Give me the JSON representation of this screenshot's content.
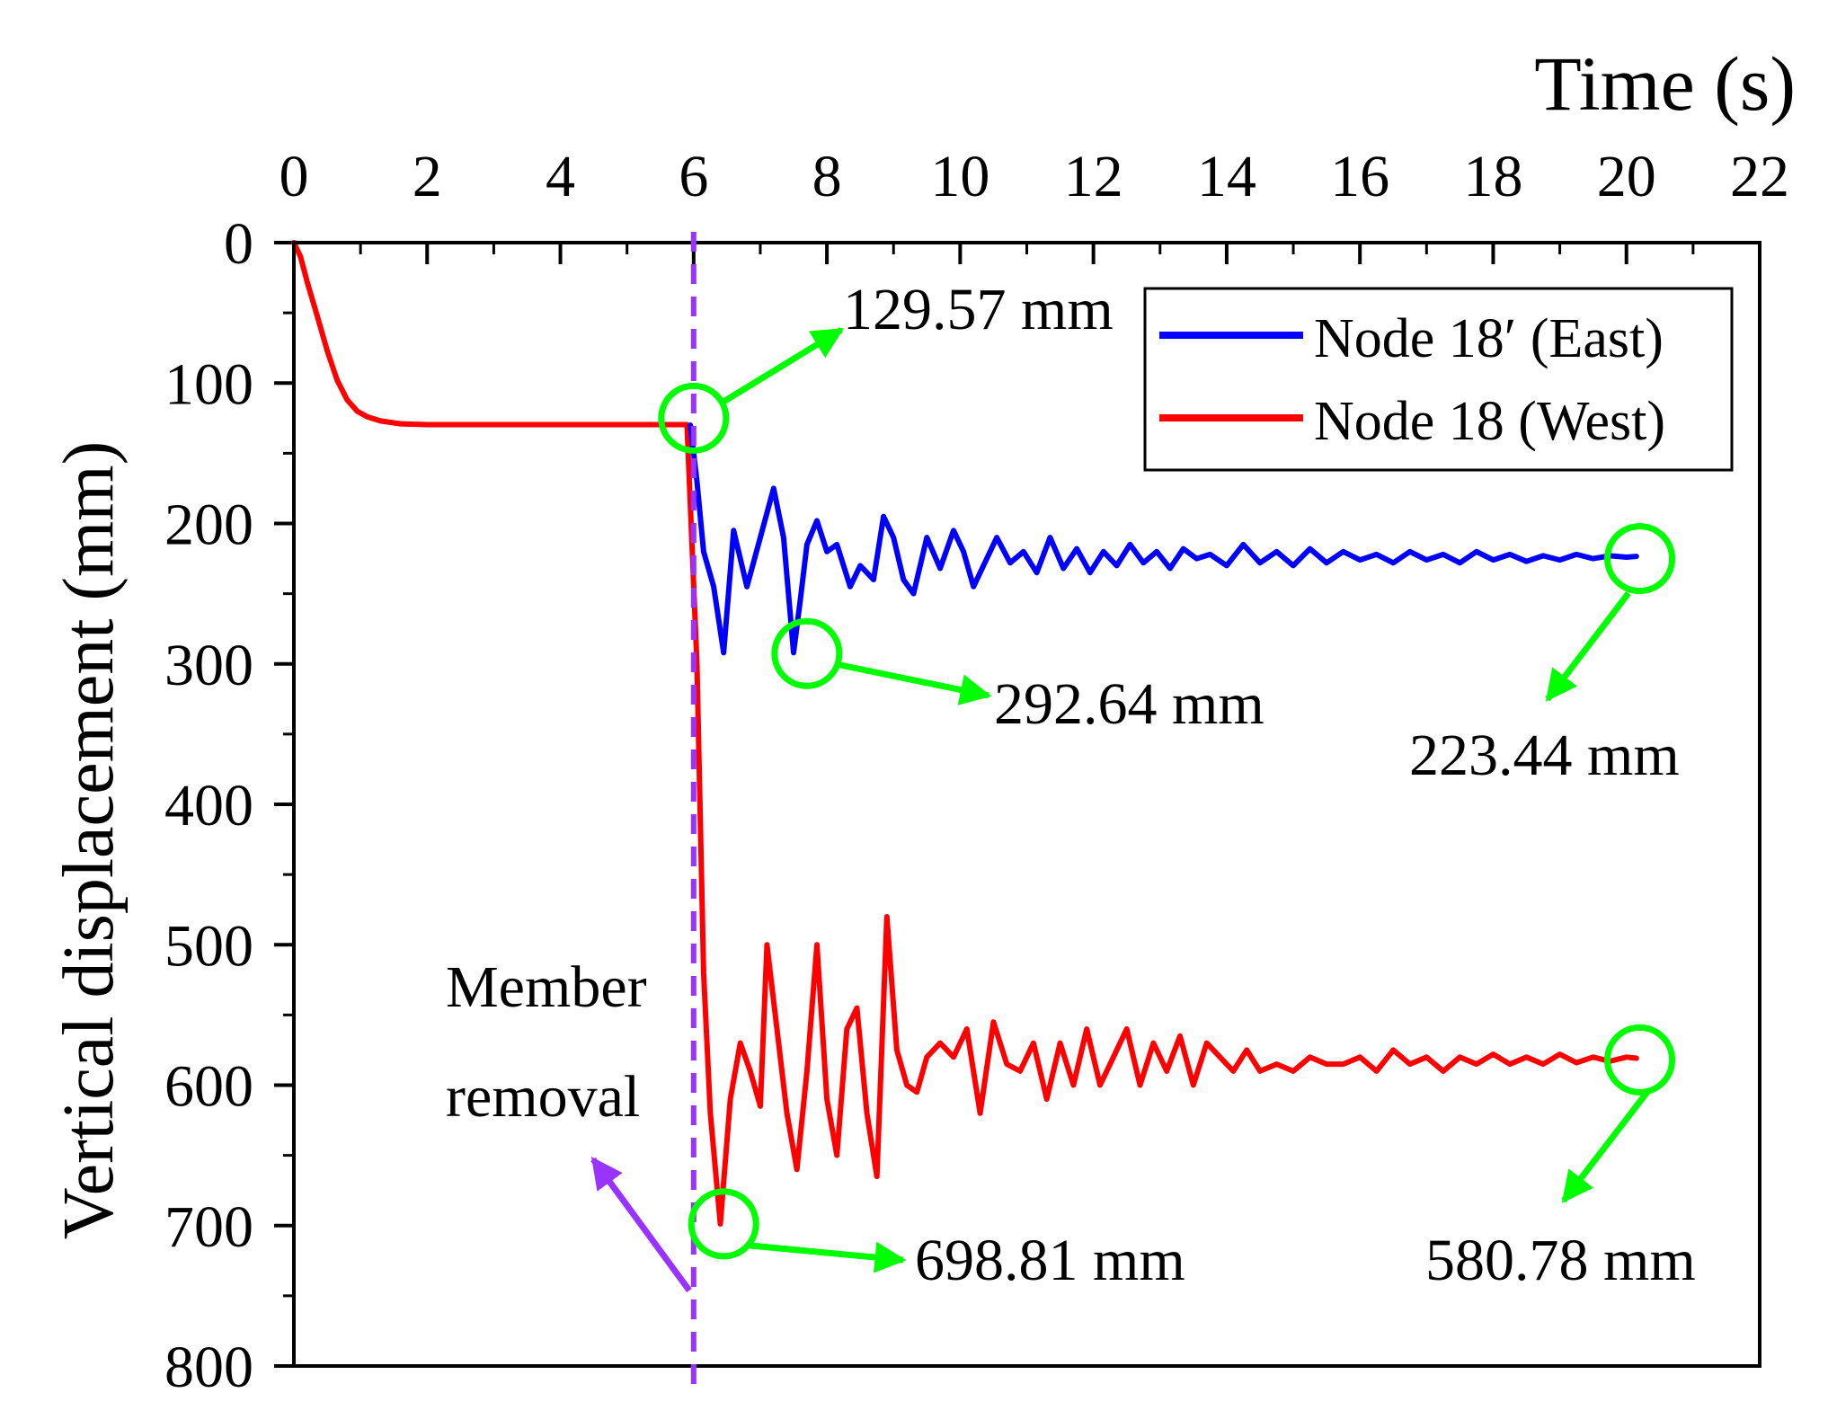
{
  "chart_data": {
    "type": "line",
    "xlabel": "Time (s)",
    "ylabel": "Vertical displacement (mm)",
    "xlim": [
      0,
      22
    ],
    "ylim": [
      0,
      800
    ],
    "y_inverted": true,
    "x_axis_position": "top",
    "xticks": [
      0,
      2,
      4,
      6,
      8,
      10,
      12,
      14,
      16,
      18,
      20,
      22
    ],
    "yticks": [
      0,
      100,
      200,
      300,
      400,
      500,
      600,
      700,
      800
    ],
    "legend_position": "top-right",
    "series": [
      {
        "name": "Node 18′ (East)",
        "color": "#0000ff",
        "x": [
          5.95,
          6.05,
          6.15,
          6.3,
          6.45,
          6.6,
          6.8,
          7.0,
          7.2,
          7.35,
          7.5,
          7.6,
          7.7,
          7.85,
          8.0,
          8.15,
          8.35,
          8.5,
          8.7,
          8.85,
          9.0,
          9.15,
          9.3,
          9.5,
          9.7,
          9.9,
          10.05,
          10.2,
          10.4,
          10.55,
          10.75,
          10.95,
          11.15,
          11.35,
          11.55,
          11.75,
          11.95,
          12.15,
          12.35,
          12.55,
          12.75,
          12.95,
          13.15,
          13.35,
          13.55,
          13.75,
          14.0,
          14.25,
          14.5,
          14.75,
          15.0,
          15.25,
          15.5,
          15.75,
          16.0,
          16.25,
          16.5,
          16.75,
          17.0,
          17.25,
          17.5,
          17.75,
          18.0,
          18.25,
          18.5,
          18.75,
          19.0,
          19.25,
          19.5,
          19.75,
          20.0,
          20.15
        ],
        "y": [
          130,
          170,
          220,
          245,
          292,
          205,
          245,
          210,
          175,
          210,
          292,
          255,
          215,
          198,
          220,
          215,
          245,
          230,
          240,
          195,
          210,
          240,
          250,
          210,
          232,
          205,
          220,
          245,
          225,
          210,
          228,
          220,
          235,
          210,
          232,
          218,
          235,
          220,
          230,
          215,
          228,
          220,
          232,
          218,
          225,
          222,
          230,
          215,
          228,
          220,
          230,
          218,
          228,
          220,
          226,
          222,
          228,
          220,
          226,
          222,
          228,
          220,
          226,
          222,
          227,
          223,
          226,
          222,
          225,
          223,
          224,
          223.44
        ]
      },
      {
        "name": "Node 18 (West)",
        "color": "#ff0000",
        "x": [
          0,
          0.1,
          0.2,
          0.35,
          0.5,
          0.65,
          0.8,
          0.95,
          1.1,
          1.3,
          1.6,
          2.0,
          3.0,
          4.0,
          5.0,
          5.9,
          6.05,
          6.15,
          6.25,
          6.4,
          6.55,
          6.7,
          6.85,
          7.0,
          7.1,
          7.25,
          7.4,
          7.55,
          7.7,
          7.85,
          8.0,
          8.15,
          8.3,
          8.45,
          8.6,
          8.75,
          8.9,
          9.05,
          9.2,
          9.35,
          9.5,
          9.7,
          9.9,
          10.1,
          10.3,
          10.5,
          10.7,
          10.9,
          11.1,
          11.3,
          11.5,
          11.7,
          11.9,
          12.1,
          12.3,
          12.5,
          12.7,
          12.9,
          13.1,
          13.3,
          13.5,
          13.7,
          13.9,
          14.1,
          14.3,
          14.5,
          14.75,
          15.0,
          15.25,
          15.5,
          15.75,
          16.0,
          16.25,
          16.5,
          16.75,
          17.0,
          17.25,
          17.5,
          17.75,
          18.0,
          18.25,
          18.5,
          18.75,
          19.0,
          19.25,
          19.5,
          19.75,
          20.0,
          20.15
        ],
        "y": [
          0,
          10,
          28,
          52,
          77,
          98,
          112,
          120,
          124,
          127,
          129,
          129.57,
          129.57,
          129.57,
          129.57,
          129.57,
          300,
          520,
          620,
          698.81,
          610,
          570,
          590,
          615,
          500,
          560,
          620,
          660,
          590,
          500,
          610,
          650,
          560,
          545,
          620,
          665,
          480,
          575,
          600,
          605,
          580,
          570,
          580,
          560,
          620,
          555,
          585,
          590,
          570,
          610,
          570,
          600,
          560,
          600,
          580,
          560,
          600,
          570,
          590,
          565,
          600,
          570,
          580,
          590,
          575,
          590,
          585,
          590,
          580,
          585,
          585,
          580,
          590,
          575,
          585,
          580,
          590,
          580,
          585,
          578,
          585,
          580,
          585,
          578,
          584,
          580,
          583,
          580,
          580.78
        ]
      }
    ],
    "vertical_line": {
      "x": 6,
      "color": "#9933ff",
      "style": "dashed"
    },
    "annotations": [
      {
        "text": "129.57 mm",
        "x": 6.0,
        "y": 125
      },
      {
        "text": "292.64 mm",
        "x": 7.7,
        "y": 292.64
      },
      {
        "text": "223.44 mm",
        "x": 20.2,
        "y": 225
      },
      {
        "text": "698.81 mm",
        "x": 6.45,
        "y": 698.81
      },
      {
        "text": "580.78 mm",
        "x": 20.2,
        "y": 582
      },
      {
        "text": "Member",
        "x": 6.0,
        "y": 745
      },
      {
        "text": "removal",
        "x": 6.0,
        "y": 745
      }
    ]
  }
}
